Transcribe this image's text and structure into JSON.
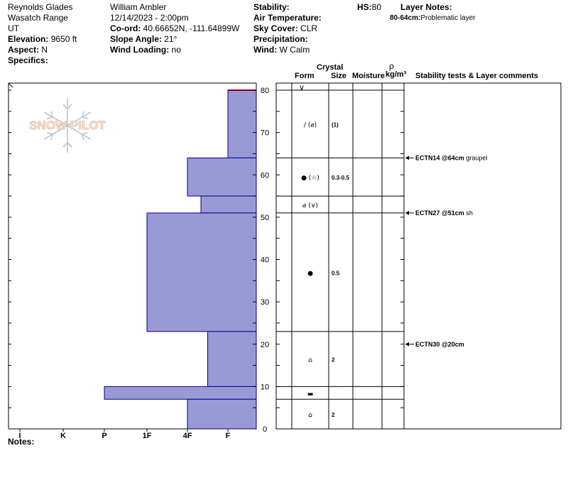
{
  "header": {
    "location": "Reynolds Glades",
    "range": "Wasatch Range",
    "state": "UT",
    "elevation_label": "Elevation:",
    "elevation_value": " 9650 ft",
    "aspect_label": "Aspect:",
    "aspect_value": " N",
    "specifics_label": "Specifics:",
    "observer": "William Ambler",
    "datetime": "12/14/2023 - 2:00pm",
    "coord_label": "Co-ord:",
    "coord_value": " 40.66652N, -111.64899W",
    "slope_label": "Slope Angle:",
    "slope_value": " 21°",
    "wind_loading_label": "Wind Loading:",
    "wind_loading_value": " no",
    "stability_label": "Stability:",
    "air_temp_label": "Air Temperature:",
    "sky_label": "Sky Cover:",
    "sky_value": " CLR",
    "precip_label": "Precipitation:",
    "wind_label": "Wind:",
    "wind_value": "  W Calm",
    "hs_label": "HS:",
    "hs_value": "80",
    "layer_notes_label": "Layer Notes:",
    "layer_note_range": "80-64cm:",
    "layer_note_text": "Problematic layer",
    "notes_label": "Notes:"
  },
  "columns": {
    "crystal": "Crystal",
    "form": "Form",
    "size": "Size",
    "moisture": "Moisture",
    "rho": "ρ",
    "density_unit": "kg/m³",
    "stability": "Stability tests & Layer comments"
  },
  "logo": {
    "text": "SNOW PILOT",
    "icon": "snowflake-icon"
  },
  "colors": {
    "hardness_fill": "#9999d6",
    "hardness_stroke": "#00008b",
    "surface_line": "#8b0000"
  },
  "chart_data": {
    "type": "bar",
    "title": "",
    "ylabel": "",
    "ylim": [
      0,
      80
    ],
    "yticks": [
      0,
      10,
      20,
      30,
      40,
      50,
      60,
      70,
      80
    ],
    "hardness_categories": [
      "I",
      "K",
      "P",
      "1F",
      "4F",
      "F"
    ],
    "layers": [
      {
        "bottom": 64,
        "top": 80,
        "hardness": "F",
        "form": "∕ (⌀)",
        "size": "(1)"
      },
      {
        "bottom": 55,
        "top": 64,
        "hardness": "4F",
        "form": "● (☆)",
        "size": "0.3-0.5"
      },
      {
        "bottom": 51,
        "top": 55,
        "hardness": "4F-",
        "form": "⌀ (∨)",
        "size": ""
      },
      {
        "bottom": 23,
        "top": 51,
        "hardness": "1F",
        "form": "●",
        "size": "0.5"
      },
      {
        "bottom": 10,
        "top": 23,
        "hardness": "F+",
        "form": "⌂",
        "size": "2"
      },
      {
        "bottom": 7,
        "top": 10,
        "hardness": "P",
        "form": "▬",
        "size": ""
      },
      {
        "bottom": 0,
        "top": 7,
        "hardness": "4F",
        "form": "⌂",
        "size": "2"
      }
    ],
    "surface_form": "∨",
    "stability_tests": [
      {
        "depth": 64,
        "test": "ECTN14 @64cm",
        "comment": "graupel"
      },
      {
        "depth": 51,
        "test": "ECTN27 @51cm",
        "comment": "sh"
      },
      {
        "depth": 20,
        "test": "ECTN30 @20cm",
        "comment": ""
      }
    ]
  }
}
